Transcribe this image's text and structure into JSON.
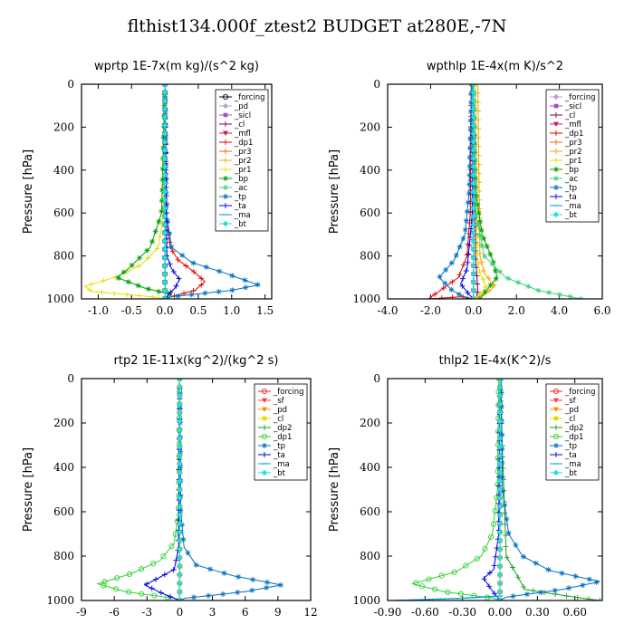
{
  "title": "flthist134.000f_ztest2  BUDGET at280E,-7N",
  "chart_data": [
    {
      "type": "line",
      "title": "wprtp   1E-7x(m kg)/(s^2 kg)",
      "ylabel": "Pressure [hPa]",
      "xlim": [
        -1.25,
        1.6
      ],
      "ylim": [
        1000,
        0
      ],
      "xticks": [
        "-1.0",
        "-0.5",
        "0.0",
        "0.5",
        "1.0",
        "1.5"
      ],
      "xtick_values": [
        -1.0,
        -0.5,
        0.0,
        0.5,
        1.0,
        1.5
      ],
      "yticks": [
        0,
        200,
        400,
        600,
        800,
        1000
      ],
      "legend_position": "top-right",
      "series": [
        {
          "name": "_forcing",
          "color": "#000000",
          "marker": "circle",
          "x": [
            0,
            0,
            0,
            0,
            0,
            0,
            0,
            0,
            0,
            0,
            0
          ],
          "y": [
            0,
            100,
            200,
            300,
            400,
            500,
            600,
            700,
            800,
            900,
            1000
          ]
        },
        {
          "name": "_pd",
          "color": "#c0a0d8",
          "marker": "diamond",
          "x": [
            0,
            0,
            0,
            0
          ],
          "y": [
            0,
            400,
            800,
            1000
          ]
        },
        {
          "name": "_sicl",
          "color": "#a050c0",
          "marker": "square",
          "x": [
            0,
            0,
            0,
            0
          ],
          "y": [
            0,
            400,
            800,
            1000
          ]
        },
        {
          "name": "_cl",
          "color": "#800050",
          "marker": "plus",
          "x": [
            0,
            0,
            0,
            0
          ],
          "y": [
            0,
            400,
            800,
            1000
          ]
        },
        {
          "name": "_mfl",
          "color": "#c02060",
          "marker": "tri",
          "x": [
            0,
            0,
            0,
            0
          ],
          "y": [
            0,
            400,
            800,
            1000
          ]
        },
        {
          "name": "_dp1",
          "color": "#e00000",
          "marker": "plus",
          "x": [
            0,
            0.02,
            0.08,
            0.2,
            0.42,
            0.6,
            0.45,
            0.1,
            0
          ],
          "y": [
            0,
            600,
            760,
            820,
            870,
            920,
            960,
            990,
            1000
          ]
        },
        {
          "name": "_pr3",
          "color": "#ff6000",
          "marker": "plus",
          "x": [
            0,
            0,
            0,
            0
          ],
          "y": [
            0,
            400,
            800,
            1000
          ]
        },
        {
          "name": "_pr2",
          "color": "#ffa000",
          "marker": "plus",
          "x": [
            0,
            0,
            0,
            0
          ],
          "y": [
            0,
            400,
            800,
            1000
          ]
        },
        {
          "name": "_pr1",
          "color": "#e0e000",
          "marker": "plus",
          "x": [
            0,
            -0.02,
            -0.1,
            -0.35,
            -0.75,
            -1.2,
            -1.1,
            -0.2,
            0
          ],
          "y": [
            0,
            600,
            760,
            840,
            900,
            940,
            965,
            990,
            1000
          ]
        },
        {
          "name": "_bp",
          "color": "#00a000",
          "marker": "star",
          "x": [
            0,
            -0.05,
            -0.22,
            -0.55,
            -0.72,
            -0.3,
            0.1,
            0
          ],
          "y": [
            0,
            600,
            760,
            860,
            900,
            950,
            980,
            1000
          ]
        },
        {
          "name": "_ac",
          "color": "#40d080",
          "marker": "star",
          "x": [
            0,
            0,
            0,
            0
          ],
          "y": [
            0,
            400,
            800,
            1000
          ]
        },
        {
          "name": "_tp",
          "color": "#0070c0",
          "marker": "star",
          "x": [
            0,
            0.02,
            0.1,
            0.4,
            0.9,
            1.4,
            1.0,
            0.1,
            0
          ],
          "y": [
            0,
            600,
            760,
            830,
            880,
            935,
            960,
            990,
            1000
          ]
        },
        {
          "name": "_ta",
          "color": "#0000e0",
          "marker": "plus",
          "x": [
            0,
            0.03,
            0.1,
            0.22,
            0.15,
            0.05,
            0
          ],
          "y": [
            0,
            800,
            860,
            910,
            950,
            980,
            1000
          ]
        },
        {
          "name": "_ma",
          "color": "#00a0e0",
          "marker": "dash",
          "x": [
            0,
            0,
            0,
            0
          ],
          "y": [
            0,
            400,
            800,
            1000
          ]
        },
        {
          "name": "_bt",
          "color": "#20e0e0",
          "marker": "diamond",
          "x": [
            0,
            0,
            0,
            0
          ],
          "y": [
            0,
            400,
            800,
            1000
          ]
        }
      ]
    },
    {
      "type": "line",
      "title": "wpthlp   1E-4x(m K)/s^2",
      "ylabel": "Pressure [hPa]",
      "xlim": [
        -4.0,
        6.0
      ],
      "ylim": [
        1000,
        0
      ],
      "xticks": [
        "-4.0",
        "-2.0",
        "0.0",
        "2.0",
        "4.0",
        "6.0"
      ],
      "xtick_values": [
        -4.0,
        -2.0,
        0.0,
        2.0,
        4.0,
        6.0
      ],
      "yticks": [
        0,
        200,
        400,
        600,
        800,
        1000
      ],
      "legend_position": "top-right",
      "series": [
        {
          "name": "_forcing",
          "color": "#c0a0d8",
          "marker": "diamond",
          "x": [
            0,
            0,
            0,
            0
          ],
          "y": [
            0,
            400,
            800,
            1000
          ]
        },
        {
          "name": "_sicl",
          "color": "#a050c0",
          "marker": "square",
          "x": [
            0,
            0,
            0,
            0
          ],
          "y": [
            0,
            400,
            800,
            1000
          ]
        },
        {
          "name": "_cl",
          "color": "#800050",
          "marker": "plus",
          "x": [
            0,
            0.05,
            0.1,
            0.2,
            0.15,
            0
          ],
          "y": [
            0,
            400,
            800,
            960,
            990,
            1000
          ]
        },
        {
          "name": "_mfl",
          "color": "#c02060",
          "marker": "tri",
          "x": [
            0,
            0,
            0,
            0
          ],
          "y": [
            0,
            400,
            800,
            1000
          ]
        },
        {
          "name": "_dp1",
          "color": "#e00000",
          "marker": "plus",
          "x": [
            -0.1,
            -0.15,
            -0.3,
            -0.7,
            -2.1,
            -0.5,
            0
          ],
          "y": [
            0,
            600,
            800,
            900,
            1000,
            990,
            1000
          ]
        },
        {
          "name": "_pr3",
          "color": "#ff6000",
          "marker": "plus",
          "x": [
            0,
            0,
            0,
            0
          ],
          "y": [
            0,
            400,
            800,
            1000
          ]
        },
        {
          "name": "_pr2",
          "color": "#ffa000",
          "marker": "plus",
          "x": [
            0.2,
            0.25,
            0.3,
            0.5,
            1.0,
            0.5,
            0
          ],
          "y": [
            0,
            400,
            800,
            880,
            940,
            980,
            1000
          ]
        },
        {
          "name": "_pr1",
          "color": "#e0e000",
          "marker": "plus",
          "x": [
            0.1,
            0.12,
            0.15,
            0.3,
            0.6,
            0.3,
            0
          ],
          "y": [
            0,
            400,
            800,
            880,
            940,
            980,
            1000
          ]
        },
        {
          "name": "_bp",
          "color": "#00a000",
          "marker": "star",
          "x": [
            -0.05,
            0.1,
            0.4,
            0.9,
            1.1,
            0.6,
            0.3
          ],
          "y": [
            0,
            500,
            700,
            820,
            900,
            960,
            1000
          ]
        },
        {
          "name": "_ac",
          "color": "#40d080",
          "marker": "star",
          "x": [
            0,
            0.1,
            0.5,
            1.5,
            3.0,
            5.0
          ],
          "y": [
            0,
            600,
            800,
            900,
            960,
            1000
          ]
        },
        {
          "name": "_tp",
          "color": "#0070c0",
          "marker": "star",
          "x": [
            -0.1,
            -0.2,
            -0.4,
            -0.9,
            -1.6,
            -1.0,
            -0.3
          ],
          "y": [
            0,
            500,
            700,
            820,
            900,
            960,
            1000
          ]
        },
        {
          "name": "_ta",
          "color": "#0000e0",
          "marker": "plus",
          "x": [
            0,
            -0.05,
            -0.3,
            -0.6,
            -0.2,
            0
          ],
          "y": [
            0,
            600,
            860,
            930,
            980,
            1000
          ]
        },
        {
          "name": "_ma",
          "color": "#00a0e0",
          "marker": "dash",
          "x": [
            0,
            0,
            0,
            0
          ],
          "y": [
            0,
            400,
            800,
            1000
          ]
        },
        {
          "name": "_bt",
          "color": "#20e0e0",
          "marker": "diamond",
          "x": [
            0,
            0,
            0,
            0
          ],
          "y": [
            0,
            400,
            800,
            1000
          ]
        }
      ]
    },
    {
      "type": "line",
      "title": "rtp2   1E-11x(kg^2)/(kg^2 s)",
      "ylabel": "Pressure [hPa]",
      "xlim": [
        -9,
        12
      ],
      "ylim": [
        1000,
        0
      ],
      "xticks": [
        "-9",
        "-6",
        "-3",
        "0",
        "3",
        "6",
        "9",
        "12"
      ],
      "xtick_values": [
        -9,
        -6,
        -3,
        0,
        3,
        6,
        9,
        12
      ],
      "yticks": [
        0,
        200,
        400,
        600,
        800,
        1000
      ],
      "legend_position": "top-right",
      "series": [
        {
          "name": "_forcing",
          "color": "#ff2020",
          "marker": "circle",
          "x": [
            0,
            0,
            0,
            0,
            0,
            0,
            0,
            0,
            0,
            0,
            0
          ],
          "y": [
            0,
            100,
            200,
            300,
            400,
            500,
            600,
            700,
            800,
            900,
            1000
          ]
        },
        {
          "name": "_sf",
          "color": "#ff4040",
          "marker": "tri",
          "x": [
            0,
            0,
            0,
            0
          ],
          "y": [
            0,
            400,
            800,
            1000
          ]
        },
        {
          "name": "_pd",
          "color": "#ff9000",
          "marker": "tri",
          "x": [
            0,
            0,
            0,
            0
          ],
          "y": [
            0,
            400,
            800,
            1000
          ]
        },
        {
          "name": "_cl",
          "color": "#e0e000",
          "marker": "square",
          "x": [
            0,
            0,
            0,
            0
          ],
          "y": [
            0,
            400,
            800,
            1000
          ]
        },
        {
          "name": "_dp2",
          "color": "#20a020",
          "marker": "plus",
          "x": [
            0,
            0,
            0,
            0
          ],
          "y": [
            0,
            400,
            800,
            1000
          ]
        },
        {
          "name": "_dp1",
          "color": "#30d030",
          "marker": "circle",
          "x": [
            0,
            -0.1,
            -0.5,
            -1.8,
            -4.5,
            -7.5,
            -5.0,
            -0.5,
            0
          ],
          "y": [
            0,
            600,
            740,
            820,
            880,
            925,
            960,
            990,
            1000
          ]
        },
        {
          "name": "_tp",
          "color": "#0070c0",
          "marker": "star",
          "x": [
            0,
            0.1,
            0.4,
            1.5,
            5.0,
            9.3,
            6.0,
            0.5,
            0
          ],
          "y": [
            0,
            600,
            760,
            840,
            890,
            930,
            960,
            990,
            1000
          ]
        },
        {
          "name": "_ta",
          "color": "#0000e0",
          "marker": "plus",
          "x": [
            0,
            -0.1,
            -0.5,
            -2.0,
            -3.2,
            -1.5,
            0
          ],
          "y": [
            0,
            760,
            860,
            900,
            930,
            970,
            1000
          ]
        },
        {
          "name": "_ma",
          "color": "#00a0e0",
          "marker": "dash",
          "x": [
            0,
            0,
            0,
            0
          ],
          "y": [
            0,
            400,
            800,
            1000
          ]
        },
        {
          "name": "_bt",
          "color": "#20e0e0",
          "marker": "diamond",
          "x": [
            0,
            0,
            0,
            0
          ],
          "y": [
            0,
            400,
            800,
            1000
          ]
        }
      ]
    },
    {
      "type": "line",
      "title": "thlp2   1E-4x(K^2)/s",
      "ylabel": "Pressure [hPa]",
      "xlim": [
        -0.9,
        0.82
      ],
      "ylim": [
        1000,
        0
      ],
      "xticks": [
        "-0.90",
        "-0.60",
        "-0.30",
        "0.00",
        "0.30",
        "0.60"
      ],
      "xtick_values": [
        -0.9,
        -0.6,
        -0.3,
        0.0,
        0.3,
        0.6
      ],
      "yticks": [
        0,
        200,
        400,
        600,
        800,
        1000
      ],
      "legend_position": "top-right",
      "series": [
        {
          "name": "_forcing",
          "color": "#ff2020",
          "marker": "circle",
          "x": [
            0,
            0,
            0,
            0,
            0,
            0,
            0,
            0,
            0,
            0,
            0
          ],
          "y": [
            0,
            100,
            200,
            300,
            400,
            500,
            600,
            700,
            800,
            900,
            1000
          ]
        },
        {
          "name": "_sf",
          "color": "#ff4040",
          "marker": "tri",
          "x": [
            0,
            0,
            0,
            0
          ],
          "y": [
            0,
            400,
            800,
            1000
          ]
        },
        {
          "name": "_pd",
          "color": "#ff9000",
          "marker": "tri",
          "x": [
            0,
            0,
            0,
            0
          ],
          "y": [
            0,
            400,
            800,
            1000
          ]
        },
        {
          "name": "_cl",
          "color": "#e0e000",
          "marker": "square",
          "x": [
            0,
            0,
            0,
            0
          ],
          "y": [
            0,
            400,
            800,
            1000
          ]
        },
        {
          "name": "_dp2",
          "color": "#20a020",
          "marker": "plus",
          "x": [
            0,
            0.05,
            0.2,
            0.6,
            0.8
          ],
          "y": [
            0,
            800,
            950,
            985,
            1000
          ]
        },
        {
          "name": "_dp1",
          "color": "#30d030",
          "marker": "circle",
          "x": [
            -0.01,
            -0.02,
            -0.06,
            -0.15,
            -0.35,
            -0.7,
            -0.45,
            -0.05,
            0
          ],
          "y": [
            0,
            500,
            700,
            800,
            870,
            925,
            960,
            990,
            1000
          ]
        },
        {
          "name": "_tp",
          "color": "#0070c0",
          "marker": "star",
          "x": [
            0.01,
            0.02,
            0.07,
            0.18,
            0.4,
            0.8,
            0.5,
            0.05,
            0
          ],
          "y": [
            0,
            500,
            700,
            800,
            865,
            915,
            950,
            985,
            1000
          ]
        },
        {
          "name": "_ta",
          "color": "#0000e0",
          "marker": "plus",
          "x": [
            0,
            -0.01,
            -0.05,
            -0.13,
            -0.07,
            0
          ],
          "y": [
            0,
            700,
            860,
            900,
            950,
            1000
          ]
        },
        {
          "name": "_ma",
          "color": "#00a0e0",
          "marker": "dash",
          "x": [
            0,
            -0.3,
            -0.85
          ],
          "y": [
            980,
            990,
            1000
          ]
        },
        {
          "name": "_bt",
          "color": "#20e0e0",
          "marker": "diamond",
          "x": [
            0,
            0,
            0,
            0
          ],
          "y": [
            0,
            400,
            800,
            1000
          ]
        }
      ]
    }
  ]
}
